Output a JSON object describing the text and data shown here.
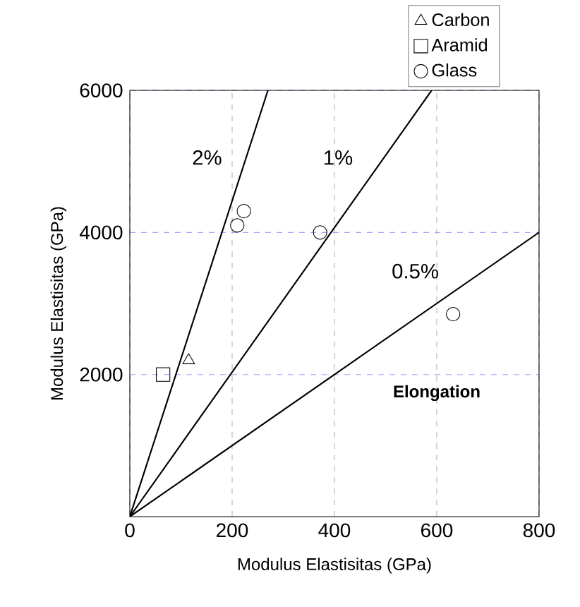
{
  "chart_data": {
    "type": "scatter",
    "xlabel": "Modulus Elastisitas (GPa)",
    "ylabel": "Modulus Elastisitas (GPa)",
    "xlim": [
      0,
      800
    ],
    "ylim": [
      0,
      6000
    ],
    "xticks": [
      0,
      200,
      400,
      600,
      800
    ],
    "yticks": [
      2000,
      4000,
      6000
    ],
    "grid": true,
    "legend": "top right",
    "series": [
      {
        "name": "Carbon",
        "color": "#000000",
        "marker": "triangle",
        "x": [
          115
        ],
        "values": [
          2200
        ]
      },
      {
        "name": "Aramid",
        "color": "#000000",
        "marker": "square",
        "x": [
          65
        ],
        "values": [
          2000
        ]
      },
      {
        "name": "Glass",
        "color": "#000000",
        "marker": "circle",
        "x": [
          223,
          210,
          372,
          632
        ],
        "values": [
          4300,
          4100,
          4000,
          2850
        ]
      },
      {
        "name": "2%",
        "type": "line",
        "color": "#000000",
        "marker": "none",
        "x": [
          0,
          270
        ],
        "values": [
          0,
          6000
        ]
      },
      {
        "name": "1%",
        "type": "line",
        "color": "#000000",
        "marker": "none",
        "x": [
          0,
          590
        ],
        "values": [
          0,
          6000
        ]
      },
      {
        "name": "0.5%",
        "type": "line",
        "color": "#000000",
        "marker": "none",
        "x": [
          0,
          800
        ],
        "values": [
          0,
          4000
        ]
      }
    ],
    "annotations": [
      "Elongation"
    ]
  }
}
